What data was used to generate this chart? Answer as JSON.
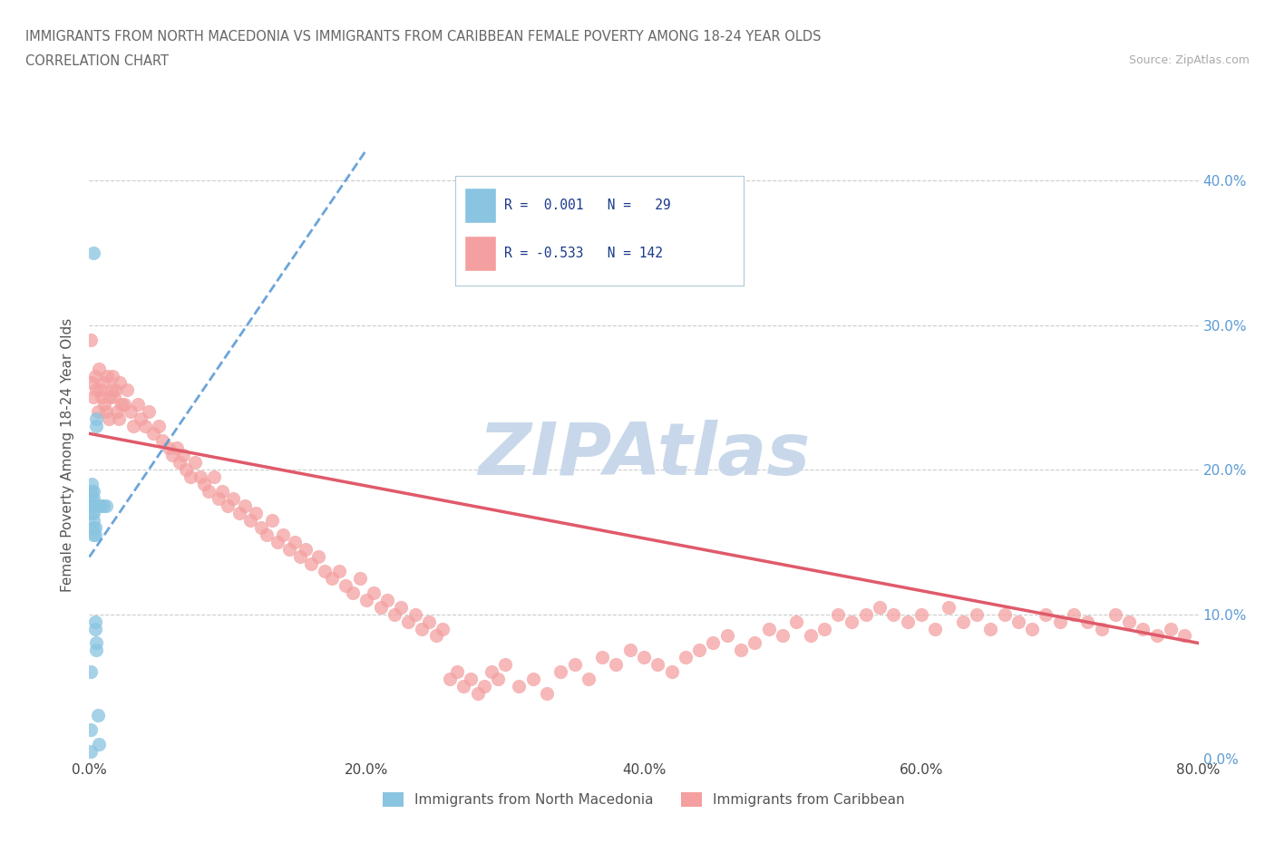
{
  "title_line1": "IMMIGRANTS FROM NORTH MACEDONIA VS IMMIGRANTS FROM CARIBBEAN FEMALE POVERTY AMONG 18-24 YEAR OLDS",
  "title_line2": "CORRELATION CHART",
  "source_text": "Source: ZipAtlas.com",
  "ylabel": "Female Poverty Among 18-24 Year Olds",
  "xlim": [
    0.0,
    0.8
  ],
  "ylim": [
    0.0,
    0.42
  ],
  "xticks": [
    0.0,
    0.1,
    0.2,
    0.3,
    0.4,
    0.5,
    0.6,
    0.7,
    0.8
  ],
  "yticks": [
    0.0,
    0.1,
    0.2,
    0.3,
    0.4
  ],
  "xticklabels": [
    "0.0%",
    "",
    "20.0%",
    "",
    "40.0%",
    "",
    "60.0%",
    "",
    "80.0%"
  ],
  "yticklabels_right": [
    "0.0%",
    "10.0%",
    "20.0%",
    "30.0%",
    "40.0%"
  ],
  "color_blue": "#89c4e1",
  "color_pink": "#f4a0a0",
  "color_blue_line": "#5b9bd5",
  "color_pink_line": "#e05a6a",
  "color_right_axis": "#5b9bd5",
  "watermark": "ZIPAtlas",
  "watermark_color": "#c8d8ea",
  "legend_box_color": "#f0f4f8",
  "legend_border_color": "#b0c4d8",
  "blue_label": "Immigrants from North Macedonia",
  "pink_label": "Immigrants from Caribbean",
  "blue_scatter_x": [
    0.001,
    0.001,
    0.001,
    0.002,
    0.002,
    0.002,
    0.002,
    0.002,
    0.003,
    0.003,
    0.003,
    0.003,
    0.003,
    0.003,
    0.003,
    0.003,
    0.004,
    0.004,
    0.004,
    0.004,
    0.005,
    0.005,
    0.005,
    0.005,
    0.006,
    0.007,
    0.008,
    0.01,
    0.012
  ],
  "blue_scatter_y": [
    0.005,
    0.02,
    0.06,
    0.17,
    0.175,
    0.18,
    0.185,
    0.19,
    0.155,
    0.16,
    0.165,
    0.17,
    0.175,
    0.18,
    0.185,
    0.35,
    0.09,
    0.095,
    0.155,
    0.16,
    0.075,
    0.08,
    0.23,
    0.235,
    0.03,
    0.01,
    0.175,
    0.175,
    0.175
  ],
  "pink_scatter_x": [
    0.001,
    0.002,
    0.003,
    0.004,
    0.005,
    0.006,
    0.007,
    0.008,
    0.009,
    0.01,
    0.011,
    0.012,
    0.013,
    0.014,
    0.015,
    0.016,
    0.017,
    0.018,
    0.019,
    0.02,
    0.021,
    0.022,
    0.023,
    0.025,
    0.027,
    0.03,
    0.032,
    0.035,
    0.037,
    0.04,
    0.043,
    0.046,
    0.05,
    0.053,
    0.057,
    0.06,
    0.063,
    0.065,
    0.068,
    0.07,
    0.073,
    0.076,
    0.08,
    0.083,
    0.086,
    0.09,
    0.093,
    0.096,
    0.1,
    0.104,
    0.108,
    0.112,
    0.116,
    0.12,
    0.124,
    0.128,
    0.132,
    0.136,
    0.14,
    0.144,
    0.148,
    0.152,
    0.156,
    0.16,
    0.165,
    0.17,
    0.175,
    0.18,
    0.185,
    0.19,
    0.195,
    0.2,
    0.205,
    0.21,
    0.215,
    0.22,
    0.225,
    0.23,
    0.235,
    0.24,
    0.245,
    0.25,
    0.255,
    0.26,
    0.265,
    0.27,
    0.275,
    0.28,
    0.285,
    0.29,
    0.295,
    0.3,
    0.31,
    0.32,
    0.33,
    0.34,
    0.35,
    0.36,
    0.37,
    0.38,
    0.39,
    0.4,
    0.41,
    0.42,
    0.43,
    0.44,
    0.45,
    0.46,
    0.47,
    0.48,
    0.49,
    0.5,
    0.51,
    0.52,
    0.53,
    0.54,
    0.55,
    0.56,
    0.57,
    0.58,
    0.59,
    0.6,
    0.61,
    0.62,
    0.63,
    0.64,
    0.65,
    0.66,
    0.67,
    0.68,
    0.69,
    0.7,
    0.71,
    0.72,
    0.73,
    0.74,
    0.75,
    0.76,
    0.77,
    0.78,
    0.79
  ],
  "pink_scatter_y": [
    0.29,
    0.26,
    0.25,
    0.265,
    0.255,
    0.24,
    0.27,
    0.255,
    0.25,
    0.26,
    0.245,
    0.24,
    0.265,
    0.235,
    0.25,
    0.255,
    0.265,
    0.25,
    0.255,
    0.24,
    0.235,
    0.26,
    0.245,
    0.245,
    0.255,
    0.24,
    0.23,
    0.245,
    0.235,
    0.23,
    0.24,
    0.225,
    0.23,
    0.22,
    0.215,
    0.21,
    0.215,
    0.205,
    0.21,
    0.2,
    0.195,
    0.205,
    0.195,
    0.19,
    0.185,
    0.195,
    0.18,
    0.185,
    0.175,
    0.18,
    0.17,
    0.175,
    0.165,
    0.17,
    0.16,
    0.155,
    0.165,
    0.15,
    0.155,
    0.145,
    0.15,
    0.14,
    0.145,
    0.135,
    0.14,
    0.13,
    0.125,
    0.13,
    0.12,
    0.115,
    0.125,
    0.11,
    0.115,
    0.105,
    0.11,
    0.1,
    0.105,
    0.095,
    0.1,
    0.09,
    0.095,
    0.085,
    0.09,
    0.055,
    0.06,
    0.05,
    0.055,
    0.045,
    0.05,
    0.06,
    0.055,
    0.065,
    0.05,
    0.055,
    0.045,
    0.06,
    0.065,
    0.055,
    0.07,
    0.065,
    0.075,
    0.07,
    0.065,
    0.06,
    0.07,
    0.075,
    0.08,
    0.085,
    0.075,
    0.08,
    0.09,
    0.085,
    0.095,
    0.085,
    0.09,
    0.1,
    0.095,
    0.1,
    0.105,
    0.1,
    0.095,
    0.1,
    0.09,
    0.105,
    0.095,
    0.1,
    0.09,
    0.1,
    0.095,
    0.09,
    0.1,
    0.095,
    0.1,
    0.095,
    0.09,
    0.1,
    0.095,
    0.09,
    0.085,
    0.09,
    0.085
  ]
}
